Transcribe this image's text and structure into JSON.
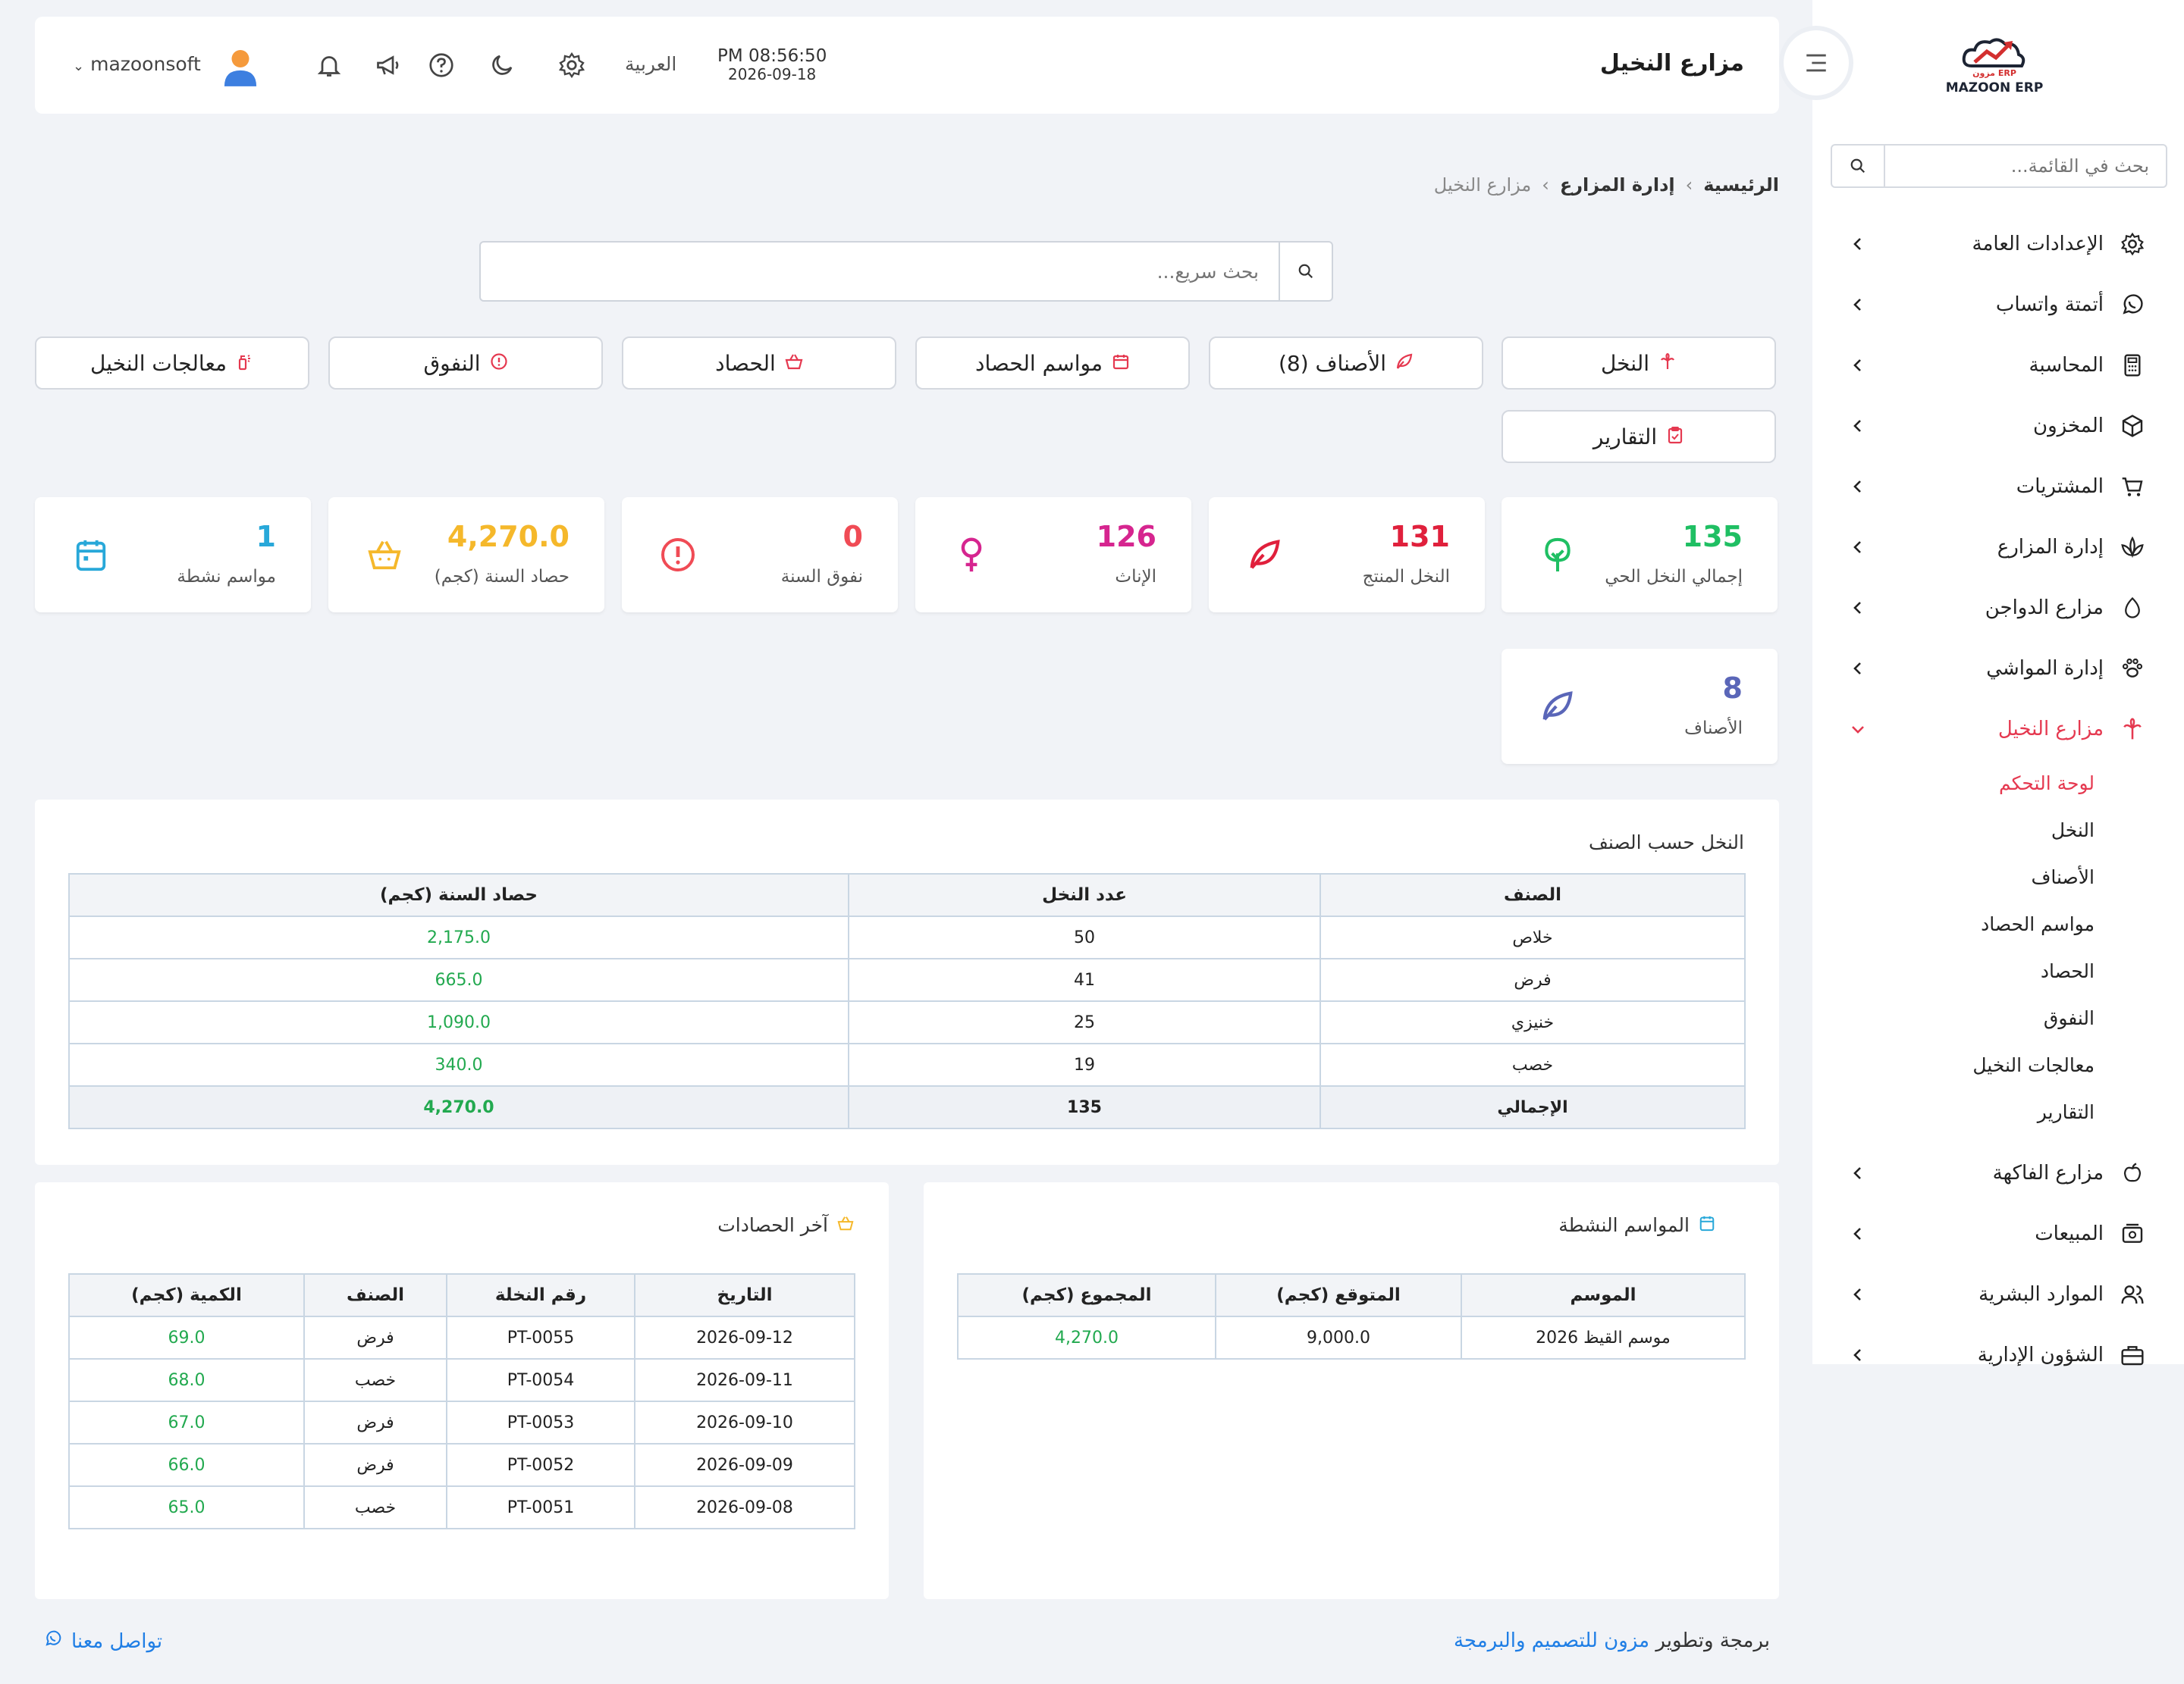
{
  "sidebar": {
    "logo_text": "MAZOON ERP",
    "logo_sub": "مزون ERP",
    "search_placeholder": "بحث في القائمة...",
    "items": [
      {
        "label": "الإعدادات العامة",
        "icon": "gear-icon"
      },
      {
        "label": "أتمتة واتساب",
        "icon": "whatsapp-icon"
      },
      {
        "label": "المحاسبة",
        "icon": "calculator-icon"
      },
      {
        "label": "المخزون",
        "icon": "box-icon"
      },
      {
        "label": "المشتريات",
        "icon": "cart-icon"
      },
      {
        "label": "إدارة المزارع",
        "icon": "plant-icon"
      },
      {
        "label": "مزارع الدواجن",
        "icon": "egg-icon"
      },
      {
        "label": "إدارة المواشي",
        "icon": "paw-icon"
      },
      {
        "label": "مزارع النخيل",
        "icon": "palm-icon"
      }
    ],
    "subitems": [
      "لوحة التحكم",
      "النخل",
      "الأصناف",
      "مواسم الحصاد",
      "الحصاد",
      "النفوق",
      "معالجات النخيل",
      "التقارير"
    ],
    "items_after": [
      {
        "label": "مزارع الفاكهة",
        "icon": "apple-icon"
      },
      {
        "label": "المبيعات",
        "icon": "cash-register-icon"
      },
      {
        "label": "الموارد البشرية",
        "icon": "users-icon"
      },
      {
        "label": "الشؤون الإدارية",
        "icon": "briefcase-icon"
      }
    ]
  },
  "header": {
    "title": "مزارع النخيل",
    "time": "PM 08:56:50",
    "date": "2026-09-18",
    "language": "العربية",
    "username": "mazoonsoft"
  },
  "breadcrumb": [
    "الرئيسية",
    "إدارة المزارع",
    "مزارع النخيل"
  ],
  "quick_search_placeholder": "بحث سريع...",
  "nav_buttons": [
    "النخل",
    "الأصناف (8)",
    "مواسم الحصاد",
    "الحصاد",
    "النفوق",
    "معالجات النخيل",
    "التقارير"
  ],
  "stats": [
    {
      "value": "135",
      "label": "إجمالي النخل الحي",
      "color": "#1fbf63",
      "icon": "tree-icon"
    },
    {
      "value": "131",
      "label": "النخل المنتج",
      "color": "#e0203c",
      "icon": "leaf-icon"
    },
    {
      "value": "126",
      "label": "الإناث",
      "color": "#d6258f",
      "icon": "female-icon"
    },
    {
      "value": "0",
      "label": "نفوق السنة",
      "color": "#f04b55",
      "icon": "alert-circle-icon"
    },
    {
      "value": "4,270.0",
      "label": "حصاد السنة (كجم)",
      "color": "#f5b82b",
      "icon": "basket-icon"
    },
    {
      "value": "1",
      "label": "مواسم نشطة",
      "color": "#28a8d9",
      "icon": "calendar-icon"
    },
    {
      "value": "8",
      "label": "الأصناف",
      "color": "#5a66b8",
      "icon": "leaf-icon"
    }
  ],
  "by_variety": {
    "title": "النخل حسب الصنف",
    "headers": [
      "الصنف",
      "عدد النخل",
      "حصاد السنة (كجم)"
    ],
    "rows": [
      [
        "خلاص",
        "50",
        "2,175.0"
      ],
      [
        "فرض",
        "41",
        "665.0"
      ],
      [
        "خنيزي",
        "25",
        "1,090.0"
      ],
      [
        "خصب",
        "19",
        "340.0"
      ]
    ],
    "total": [
      "الإجمالي",
      "135",
      "4,270.0"
    ]
  },
  "active_seasons": {
    "title": "المواسم النشطة",
    "headers": [
      "الموسم",
      "المتوقع (كجم)",
      "المجموع (كجم)"
    ],
    "rows": [
      [
        "موسم القيظ 2026",
        "9,000.0",
        "4,270.0"
      ]
    ]
  },
  "recent_harvests": {
    "title": "آخر الحصادات",
    "headers": [
      "التاريخ",
      "رقم النخلة",
      "الصنف",
      "الكمية (كجم)"
    ],
    "rows": [
      [
        "2026-09-12",
        "PT-0055",
        "فرض",
        "69.0"
      ],
      [
        "2026-09-11",
        "PT-0054",
        "خصب",
        "68.0"
      ],
      [
        "2026-09-10",
        "PT-0053",
        "فرض",
        "67.0"
      ],
      [
        "2026-09-09",
        "PT-0052",
        "فرض",
        "66.0"
      ],
      [
        "2026-09-08",
        "PT-0051",
        "خصب",
        "65.0"
      ]
    ]
  },
  "footer": {
    "prefix": "برمجة وتطوير",
    "company": "مزون للتصميم والبرمجة",
    "contact": "تواصل معنا"
  }
}
